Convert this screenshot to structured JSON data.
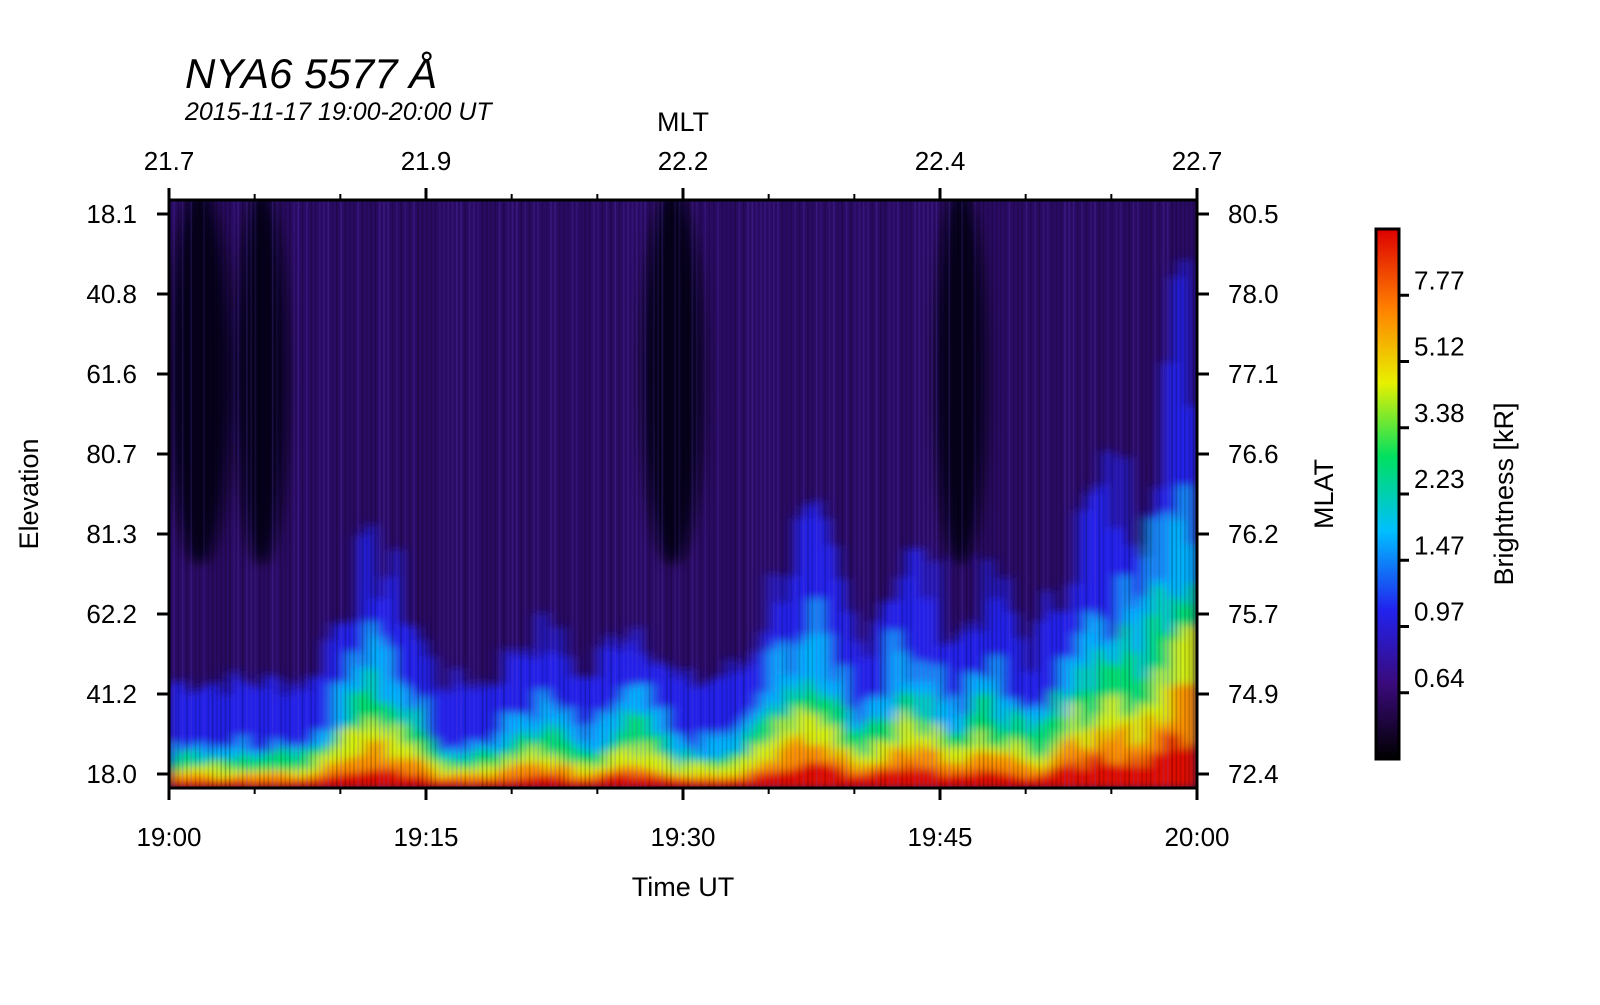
{
  "chart_data": {
    "type": "heatmap",
    "title": "NYA6 5577 Å",
    "subtitle": "2015-11-17 19:00-20:00 UT",
    "xlabel": "Time UT",
    "ylabel": "Elevation",
    "top_xlabel": "MLT",
    "right_ylabel": "MLAT",
    "colorbar_label": "Brightness [kR]",
    "x_ticks": [
      "19:00",
      "19:15",
      "19:30",
      "19:45",
      "20:00"
    ],
    "x_range": [
      "19:00",
      "20:00"
    ],
    "mlt_ticks": [
      "21.7",
      "21.9",
      "22.2",
      "22.4",
      "22.7"
    ],
    "elevation_ticks": [
      "18.1",
      "40.8",
      "61.6",
      "80.7",
      "81.3",
      "62.2",
      "41.2",
      "18.0"
    ],
    "mlat_ticks": [
      "80.5",
      "78.0",
      "77.1",
      "76.6",
      "76.2",
      "75.7",
      "74.9",
      "72.4"
    ],
    "colorbar_ticks": [
      "0.64",
      "0.97",
      "1.47",
      "2.23",
      "3.38",
      "5.12",
      "7.77"
    ],
    "color_scale": [
      "#000000",
      "#3a0a7a",
      "#2222ee",
      "#00bfff",
      "#00e060",
      "#e8f000",
      "#ff8000",
      "#dd0000"
    ],
    "grid": false,
    "colorbar_position": "right"
  }
}
